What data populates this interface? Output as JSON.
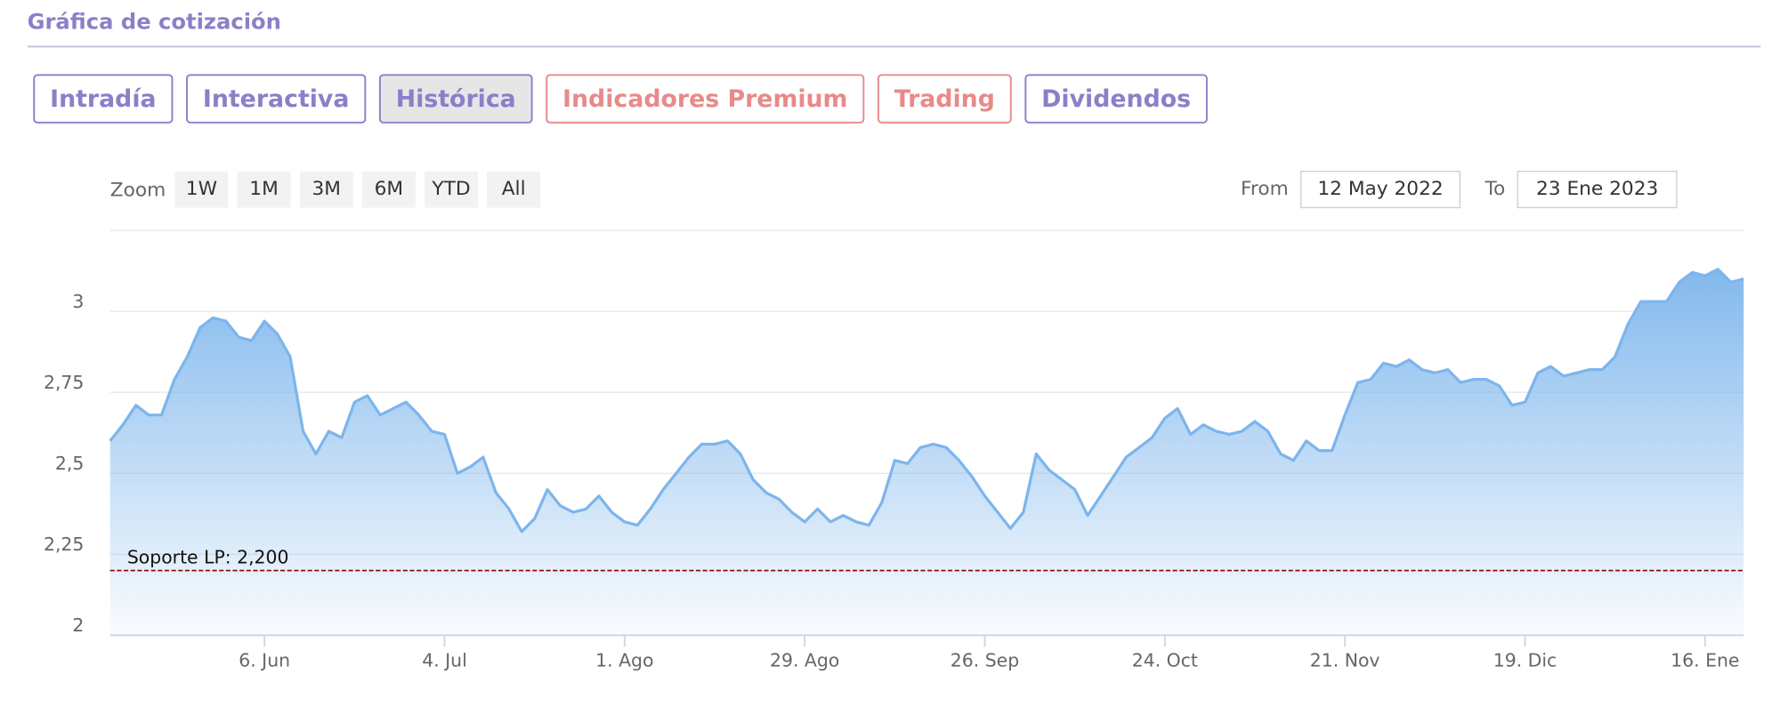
{
  "header": {
    "title": "Gráfica de cotización"
  },
  "tabs": [
    {
      "label": "Intradía",
      "color": "#8c7fc8",
      "active": false
    },
    {
      "label": "Interactiva",
      "color": "#8c7fc8",
      "active": false
    },
    {
      "label": "Histórica",
      "color": "#8c7fc8",
      "active": true
    },
    {
      "label": "Indicadores Premium",
      "color": "#e88a8a",
      "active": false
    },
    {
      "label": "Trading",
      "color": "#e88a8a",
      "active": false
    },
    {
      "label": "Dividendos",
      "color": "#8c7fc8",
      "active": false
    }
  ],
  "range_selector": {
    "zoom_label": "Zoom",
    "buttons": [
      "1W",
      "1M",
      "3M",
      "6M",
      "YTD",
      "All"
    ],
    "from_label": "From",
    "from": "12 May 2022",
    "to_label": "To",
    "to": "23 Ene 2023"
  },
  "chart_data": {
    "type": "area",
    "color": "#7cb5ec",
    "categories": [
      null,
      null,
      null,
      null,
      null,
      null,
      null,
      null,
      null,
      null,
      null,
      null,
      "6. Jun",
      null,
      null,
      null,
      null,
      null,
      null,
      null,
      null,
      null,
      null,
      null,
      null,
      null,
      "4. Jul",
      null,
      null,
      null,
      null,
      null,
      null,
      null,
      null,
      null,
      null,
      null,
      null,
      null,
      "1. Ago",
      null,
      null,
      null,
      null,
      null,
      null,
      null,
      null,
      null,
      null,
      null,
      null,
      null,
      "29. Ago",
      null,
      null,
      null,
      null,
      null,
      null,
      null,
      null,
      null,
      null,
      null,
      null,
      null,
      "26. Sep",
      null,
      null,
      null,
      null,
      null,
      null,
      null,
      null,
      null,
      null,
      null,
      null,
      null,
      "24. Oct",
      null,
      null,
      null,
      null,
      null,
      null,
      null,
      null,
      null,
      null,
      null,
      null,
      null,
      "21. Nov",
      null,
      null,
      null,
      null,
      null,
      null,
      null,
      null,
      null,
      null,
      null,
      null,
      null,
      "19. Dic",
      null,
      null,
      null,
      null,
      null,
      null,
      null,
      null,
      null,
      null,
      null,
      null,
      null,
      "16. Ene",
      null,
      null,
      null
    ],
    "values": [
      2.6,
      2.65,
      2.71,
      2.68,
      2.68,
      2.79,
      2.86,
      2.95,
      2.98,
      2.97,
      2.92,
      2.91,
      2.97,
      2.93,
      2.86,
      2.63,
      2.56,
      2.63,
      2.61,
      2.72,
      2.74,
      2.68,
      2.7,
      2.72,
      2.68,
      2.63,
      2.62,
      2.5,
      2.52,
      2.55,
      2.44,
      2.39,
      2.32,
      2.36,
      2.45,
      2.4,
      2.38,
      2.39,
      2.43,
      2.38,
      2.35,
      2.34,
      2.39,
      2.45,
      2.5,
      2.55,
      2.59,
      2.59,
      2.6,
      2.56,
      2.48,
      2.44,
      2.42,
      2.38,
      2.35,
      2.39,
      2.35,
      2.37,
      2.35,
      2.34,
      2.41,
      2.54,
      2.53,
      2.58,
      2.59,
      2.58,
      2.54,
      2.49,
      2.43,
      2.38,
      2.33,
      2.38,
      2.56,
      2.51,
      2.48,
      2.45,
      2.37,
      2.43,
      2.49,
      2.55,
      2.58,
      2.61,
      2.67,
      2.7,
      2.62,
      2.65,
      2.63,
      2.62,
      2.63,
      2.66,
      2.63,
      2.56,
      2.54,
      2.6,
      2.57,
      2.57,
      2.68,
      2.78,
      2.79,
      2.84,
      2.83,
      2.85,
      2.82,
      2.81,
      2.82,
      2.78,
      2.79,
      2.79,
      2.77,
      2.71,
      2.72,
      2.81,
      2.83,
      2.8,
      2.81,
      2.82,
      2.82,
      2.86,
      2.96,
      3.03,
      3.03,
      3.03,
      3.09,
      3.12,
      3.11,
      3.13,
      3.09,
      3.1
    ],
    "ylim": [
      2,
      3.25
    ],
    "yticks": [
      2,
      {
        "value": 2.25,
        "label": "2,25"
      },
      {
        "value": 2.5,
        "label": "2,5"
      },
      {
        "value": 2.75,
        "label": "2,75"
      },
      3
    ],
    "grid": true,
    "plot_lines": [
      {
        "value": 2.2,
        "label": "Soporte LP: 2,200",
        "color": "#8b0000"
      }
    ]
  }
}
